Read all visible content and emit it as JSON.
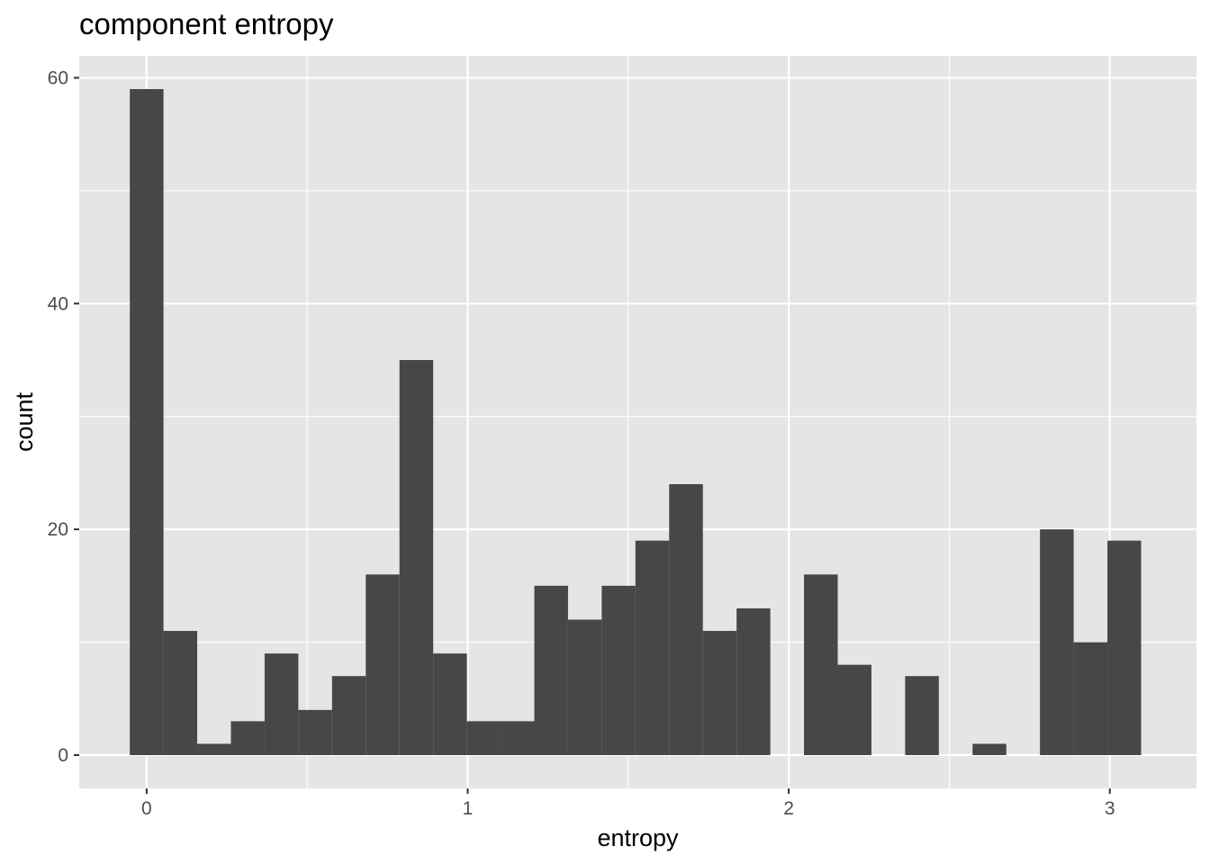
{
  "chart_data": {
    "type": "bar",
    "title": "component entropy",
    "xlabel": "entropy",
    "ylabel": "count",
    "bin_width": 0.105,
    "bin_centers": [
      0.0,
      0.105,
      0.21,
      0.315,
      0.42,
      0.525,
      0.63,
      0.735,
      0.84,
      0.945,
      1.05,
      1.155,
      1.26,
      1.365,
      1.47,
      1.575,
      1.68,
      1.785,
      1.89,
      1.995,
      2.1,
      2.205,
      2.31,
      2.415,
      2.52,
      2.625,
      2.73,
      2.835,
      2.94,
      3.045
    ],
    "values": [
      59,
      11,
      1,
      3,
      9,
      4,
      7,
      16,
      35,
      9,
      3,
      3,
      15,
      12,
      15,
      19,
      24,
      11,
      13,
      0,
      16,
      8,
      0,
      7,
      0,
      1,
      0,
      20,
      10,
      19
    ],
    "xlim": [
      -0.21,
      3.27
    ],
    "ylim": [
      -2.95,
      61.95
    ],
    "x_ticks": [
      0,
      1,
      2,
      3
    ],
    "x_tick_labels": [
      "0",
      "1",
      "2",
      "3"
    ],
    "y_ticks": [
      0,
      20,
      40,
      60
    ],
    "y_tick_labels": [
      "0",
      "20",
      "40",
      "60"
    ],
    "grid": true,
    "colors": {
      "panel": "#e5e5e5",
      "grid": "#ffffff",
      "bar": "#474747",
      "tick": "#4d4d4d"
    }
  }
}
